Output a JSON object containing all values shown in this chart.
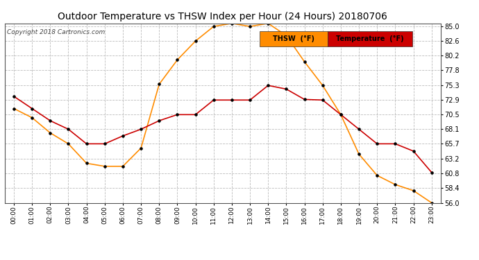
{
  "title": "Outdoor Temperature vs THSW Index per Hour (24 Hours) 20180706",
  "copyright": "Copyright 2018 Cartronics.com",
  "hours": [
    "00:00",
    "01:00",
    "02:00",
    "03:00",
    "04:00",
    "05:00",
    "06:00",
    "07:00",
    "08:00",
    "09:00",
    "10:00",
    "11:00",
    "12:00",
    "13:00",
    "14:00",
    "15:00",
    "16:00",
    "17:00",
    "18:00",
    "19:00",
    "20:00",
    "21:00",
    "22:00",
    "23:00"
  ],
  "temperature_F": [
    73.5,
    71.5,
    69.5,
    68.1,
    65.7,
    65.7,
    67.0,
    68.1,
    69.5,
    70.5,
    70.5,
    72.9,
    72.9,
    72.9,
    75.3,
    74.7,
    73.0,
    72.9,
    70.5,
    68.1,
    65.7,
    65.7,
    64.5,
    61.0
  ],
  "thsw_F": [
    71.5,
    70.0,
    67.5,
    65.7,
    62.5,
    62.0,
    62.0,
    65.0,
    75.5,
    79.5,
    82.6,
    85.0,
    85.5,
    85.0,
    85.5,
    83.5,
    79.2,
    75.3,
    70.5,
    64.0,
    60.5,
    59.0,
    58.0,
    56.0
  ],
  "ylim": [
    56.0,
    85.5
  ],
  "yticks": [
    56.0,
    58.4,
    60.8,
    63.2,
    65.7,
    68.1,
    70.5,
    72.9,
    75.3,
    77.8,
    80.2,
    82.6,
    85.0
  ],
  "temp_color": "#cc0000",
  "thsw_color": "#ff8c00",
  "bg_color": "#ffffff",
  "grid_color": "#bbbbbb",
  "legend_thsw_bg": "#ff8c00",
  "legend_temp_bg": "#cc0000",
  "title_fontsize": 10,
  "copyright_fontsize": 6.5
}
